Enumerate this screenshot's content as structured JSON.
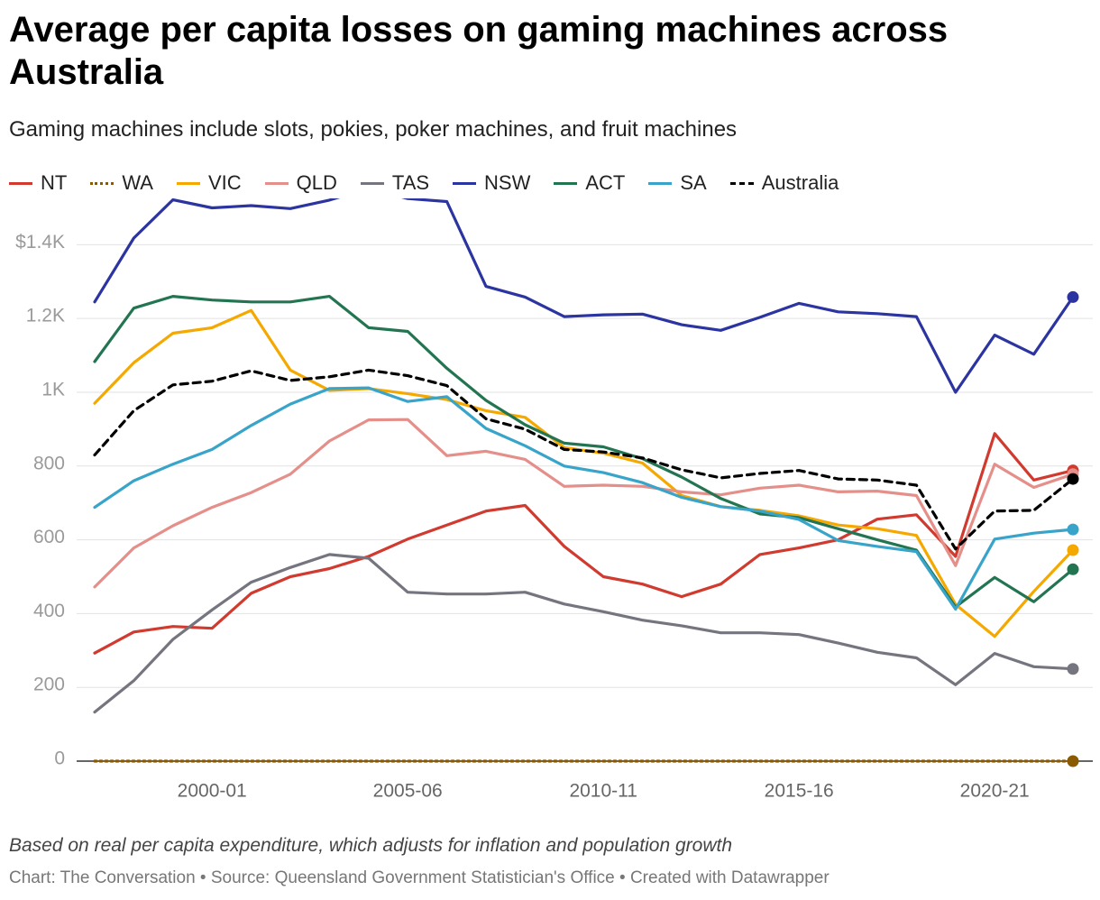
{
  "title": "Average per capita losses on gaming machines across Australia",
  "subtitle": "Gaming machines include slots, pokies, poker machines, and fruit machines",
  "note": "Based on real per capita expenditure, which adjusts for inflation and population growth",
  "credit": "Chart: The Conversation • Source: Queensland Government Statistician's Office • Created with Datawrapper",
  "chart_data": {
    "type": "line",
    "x": [
      "1997-98",
      "1998-99",
      "1999-00",
      "2000-01",
      "2001-02",
      "2002-03",
      "2003-04",
      "2004-05",
      "2005-06",
      "2006-07",
      "2007-08",
      "2008-09",
      "2009-10",
      "2010-11",
      "2011-12",
      "2012-13",
      "2013-14",
      "2014-15",
      "2015-16",
      "2016-17",
      "2017-18",
      "2018-19",
      "2019-20",
      "2020-21",
      "2021-22",
      "2022-23"
    ],
    "x_ticks": [
      "2000-01",
      "2005-06",
      "2010-11",
      "2015-16",
      "2020-21"
    ],
    "y_ticks": [
      0,
      200,
      400,
      600,
      800,
      1000,
      1200,
      1400
    ],
    "y_tick_labels": [
      "0",
      "200",
      "400",
      "600",
      "800",
      "1K",
      "1.2K",
      "$1.4K"
    ],
    "ylim": [
      0,
      1550
    ],
    "grid": true,
    "legend_position": "top-left",
    "series": [
      {
        "name": "NT",
        "color": "#d13a2f",
        "style": "solid",
        "values": [
          293,
          350,
          365,
          360,
          455,
          500,
          522,
          555,
          602,
          640,
          678,
          693,
          582,
          500,
          480,
          446,
          480,
          560,
          578,
          600,
          656,
          668,
          555,
          888,
          762,
          788
        ]
      },
      {
        "name": "WA",
        "color": "#8a5a00",
        "style": "dotted",
        "values": [
          0,
          0,
          0,
          0,
          0,
          0,
          0,
          0,
          0,
          0,
          0,
          0,
          0,
          0,
          0,
          0,
          0,
          0,
          0,
          0,
          0,
          0,
          0,
          0,
          0,
          0
        ]
      },
      {
        "name": "VIC",
        "color": "#f5a800",
        "style": "solid",
        "values": [
          970,
          1080,
          1160,
          1175,
          1222,
          1060,
          1005,
          1010,
          996,
          980,
          950,
          932,
          850,
          835,
          808,
          720,
          690,
          680,
          665,
          640,
          630,
          612,
          425,
          338,
          460,
          572
        ]
      },
      {
        "name": "QLD",
        "color": "#e58f8a",
        "style": "solid",
        "values": [
          472,
          578,
          638,
          688,
          728,
          778,
          868,
          925,
          926,
          828,
          840,
          818,
          745,
          748,
          745,
          730,
          722,
          740,
          748,
          730,
          732,
          720,
          530,
          805,
          742,
          778
        ]
      },
      {
        "name": "TAS",
        "color": "#75757f",
        "style": "solid",
        "values": [
          133,
          218,
          330,
          410,
          485,
          525,
          560,
          550,
          458,
          453,
          453,
          458,
          426,
          405,
          382,
          367,
          348,
          348,
          343,
          320,
          295,
          280,
          207,
          292,
          256,
          250
        ]
      },
      {
        "name": "NSW",
        "color": "#2b34a0",
        "style": "solid",
        "values": [
          1245,
          1418,
          1522,
          1500,
          1506,
          1498,
          1521,
          1553,
          1525,
          1517,
          1287,
          1258,
          1205,
          1210,
          1212,
          1183,
          1168,
          1203,
          1241,
          1218,
          1213,
          1205,
          1000,
          1155,
          1103,
          1258
        ]
      },
      {
        "name": "ACT",
        "color": "#237552",
        "style": "solid",
        "values": [
          1083,
          1228,
          1260,
          1250,
          1245,
          1245,
          1260,
          1175,
          1165,
          1065,
          978,
          912,
          862,
          852,
          820,
          770,
          712,
          670,
          660,
          630,
          600,
          572,
          418,
          498,
          432,
          520
        ]
      },
      {
        "name": "SA",
        "color": "#39a4c9",
        "style": "solid",
        "values": [
          688,
          760,
          805,
          845,
          910,
          968,
          1010,
          1012,
          975,
          988,
          902,
          855,
          800,
          782,
          755,
          715,
          690,
          678,
          655,
          598,
          582,
          568,
          412,
          602,
          618,
          628
        ]
      },
      {
        "name": "Australia",
        "color": "#000000",
        "style": "dashed",
        "values": [
          830,
          950,
          1020,
          1030,
          1058,
          1032,
          1042,
          1060,
          1045,
          1018,
          928,
          900,
          845,
          838,
          822,
          790,
          768,
          780,
          788,
          765,
          762,
          748,
          575,
          678,
          680,
          765
        ]
      }
    ]
  }
}
